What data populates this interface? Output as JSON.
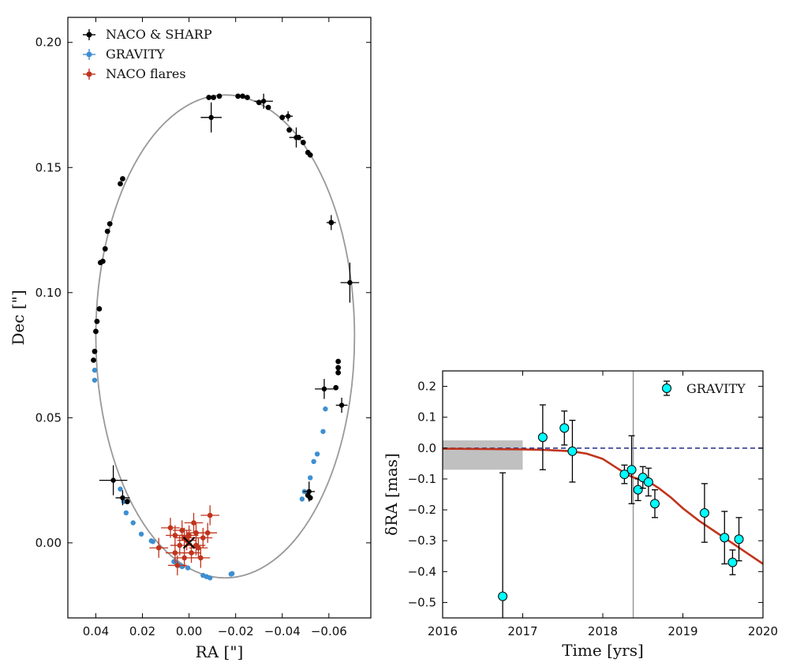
{
  "chart_data": [
    {
      "id": "orbit",
      "type": "scatter",
      "xlabel": "RA [\"]",
      "ylabel": "Dec [\"]",
      "xlim": [
        0.052,
        -0.078
      ],
      "ylim": [
        -0.03,
        0.21
      ],
      "x_ticks": [
        0.04,
        0.02,
        0.0,
        -0.02,
        -0.04,
        -0.06
      ],
      "x_tick_labels": [
        "0.04",
        "0.02",
        "0.00",
        "−0.02",
        "−0.04",
        "−0.06"
      ],
      "y_ticks": [
        0.0,
        0.05,
        0.1,
        0.15,
        0.2
      ],
      "y_tick_labels": [
        "0.00",
        "0.05",
        "0.10",
        "0.15",
        "0.20"
      ],
      "grid": false,
      "legend_position": "top-left",
      "legend": [
        {
          "label": "NACO & SHARP",
          "color": "#000000"
        },
        {
          "label": "GRAVITY",
          "color": "#3d8fd1"
        },
        {
          "label": "NACO flares",
          "color": "#c0341d"
        }
      ],
      "orbit_ellipse": {
        "center": [
          -0.0155,
          0.0825
        ],
        "semi_x": 0.0555,
        "semi_y": 0.0965,
        "color": "#999999"
      },
      "center_marker": {
        "x": 0.0,
        "y": 0.0,
        "symbol": "x"
      },
      "series": [
        {
          "name": "NACO & SHARP",
          "color": "#000000",
          "points": [
            [
              -0.0085,
              0.178
            ],
            [
              -0.0105,
              0.178
            ],
            [
              -0.013,
              0.1785
            ],
            [
              -0.021,
              0.1785
            ],
            [
              -0.023,
              0.1785
            ],
            [
              -0.025,
              0.178
            ],
            [
              -0.03,
              0.176
            ],
            [
              -0.034,
              0.174
            ],
            [
              -0.04,
              0.17
            ],
            [
              -0.043,
              0.165
            ],
            [
              -0.047,
              0.162
            ],
            [
              -0.049,
              0.16
            ],
            [
              -0.051,
              0.156
            ],
            [
              -0.052,
              0.155
            ],
            [
              -0.061,
              0.128
            ],
            [
              -0.064,
              0.0725
            ],
            [
              -0.064,
              0.07
            ],
            [
              -0.064,
              0.068
            ],
            [
              -0.063,
              0.062
            ],
            [
              -0.052,
              0.018
            ],
            [
              -0.051,
              0.019
            ],
            [
              0.0285,
              0.1455
            ],
            [
              0.0295,
              0.1435
            ],
            [
              0.034,
              0.1275
            ],
            [
              0.035,
              0.1245
            ],
            [
              0.036,
              0.1175
            ],
            [
              0.037,
              0.1125
            ],
            [
              0.038,
              0.112
            ],
            [
              0.0385,
              0.0935
            ],
            [
              0.0395,
              0.0885
            ],
            [
              0.04,
              0.0845
            ],
            [
              0.0405,
              0.0765
            ],
            [
              0.041,
              0.073
            ],
            [
              0.0265,
              0.0165
            ]
          ],
          "error_points": [
            {
              "x": -0.0095,
              "y": 0.17,
              "dx": 0.0045,
              "dy": 0.006
            },
            {
              "x": -0.032,
              "y": 0.1765,
              "dx": 0.004,
              "dy": 0.003
            },
            {
              "x": -0.046,
              "y": 0.162,
              "dx": 0.003,
              "dy": 0.004
            },
            {
              "x": -0.0425,
              "y": 0.1705,
              "dx": 0.002,
              "dy": 0.002
            },
            {
              "x": -0.061,
              "y": 0.128,
              "dx": 0.002,
              "dy": 0.003
            },
            {
              "x": -0.069,
              "y": 0.104,
              "dx": 0.004,
              "dy": 0.008
            },
            {
              "x": -0.058,
              "y": 0.0615,
              "dx": 0.004,
              "dy": 0.004
            },
            {
              "x": -0.0655,
              "y": 0.055,
              "dx": 0.0025,
              "dy": 0.003
            },
            {
              "x": -0.0515,
              "y": 0.0205,
              "dx": 0.0025,
              "dy": 0.004
            },
            {
              "x": 0.0325,
              "y": 0.025,
              "dx": 0.006,
              "dy": 0.006
            },
            {
              "x": 0.0285,
              "y": 0.018,
              "dx": 0.003,
              "dy": 0.003
            }
          ]
        },
        {
          "name": "GRAVITY",
          "color": "#3d8fd1",
          "points": [
            [
              0.0405,
              0.069
            ],
            [
              0.0405,
              0.065
            ],
            [
              0.0395,
              0.0885
            ],
            [
              0.0295,
              0.0215
            ],
            [
              0.028,
              0.0165
            ],
            [
              0.027,
              0.012
            ],
            [
              0.024,
              0.008
            ],
            [
              0.0205,
              0.0035
            ],
            [
              0.0162,
              0.0008
            ],
            [
              0.0155,
              0.0005
            ],
            [
              0.0065,
              -0.0075
            ],
            [
              0.0055,
              -0.008
            ],
            [
              0.004,
              -0.009
            ],
            [
              0.003,
              -0.0095
            ],
            [
              0.0005,
              -0.01
            ],
            [
              -0.006,
              -0.013
            ],
            [
              -0.0075,
              -0.0135
            ],
            [
              -0.009,
              -0.014
            ],
            [
              -0.018,
              -0.0125
            ],
            [
              -0.0185,
              -0.0123
            ],
            [
              -0.0485,
              0.0175
            ],
            [
              -0.0495,
              0.0205
            ],
            [
              -0.052,
              0.026
            ],
            [
              -0.0535,
              0.0325
            ],
            [
              -0.055,
              0.0355
            ],
            [
              -0.0575,
              0.0445
            ],
            [
              -0.0585,
              0.0535
            ]
          ]
        },
        {
          "name": "NACO flares",
          "color": "#c0341d",
          "points": [
            [
              0.001,
              0.001
            ],
            [
              -0.003,
              0.004
            ],
            [
              0.004,
              -0.001
            ],
            [
              -0.006,
              0.002
            ],
            [
              -0.001,
              -0.004
            ],
            [
              0.003,
              0.005
            ],
            [
              -0.004,
              -0.002
            ],
            [
              0.006,
              0.003
            ],
            [
              0.002,
              -0.006
            ],
            [
              -0.008,
              0.004
            ],
            [
              0.013,
              -0.002
            ],
            [
              -0.009,
              0.011
            ],
            [
              0.005,
              -0.009
            ],
            [
              -0.002,
              0.008
            ],
            [
              0.008,
              0.006
            ],
            [
              -0.005,
              -0.006
            ],
            [
              0.0,
              0.003
            ],
            [
              -0.003,
              -0.001
            ],
            [
              0.002,
              0.002
            ],
            [
              0.006,
              -0.004
            ]
          ]
        }
      ]
    },
    {
      "id": "delta-ra",
      "type": "scatter",
      "xlabel": "Time [yrs]",
      "ylabel": "δRA [mas]",
      "xlim": [
        2016,
        2020
      ],
      "ylim": [
        -0.55,
        0.25
      ],
      "x_ticks": [
        2016,
        2017,
        2018,
        2019,
        2020
      ],
      "x_tick_labels": [
        "2016",
        "2017",
        "2018",
        "2019",
        "2020"
      ],
      "y_ticks": [
        -0.5,
        -0.4,
        -0.3,
        -0.2,
        -0.1,
        0.0,
        0.1,
        0.2
      ],
      "y_tick_labels": [
        "−0.5",
        "−0.4",
        "−0.3",
        "−0.2",
        "−0.1",
        "0.0",
        "0.1",
        "0.2"
      ],
      "grid": false,
      "legend_position": "top-right",
      "legend": [
        {
          "label": "GRAVITY",
          "color": "#00ffff"
        }
      ],
      "zero_line": {
        "y": 0.0,
        "color": "#1f2a8c",
        "style": "dashed"
      },
      "shaded_band": {
        "x": [
          2016,
          2017
        ],
        "y": [
          -0.07,
          0.025
        ],
        "color": "#c0c0c0"
      },
      "vertical_line": {
        "x": 2018.38,
        "color": "#999999"
      },
      "model_curve": {
        "color": "#c0341d",
        "points": [
          [
            2016.0,
            -0.002
          ],
          [
            2016.5,
            -0.003
          ],
          [
            2017.0,
            -0.004
          ],
          [
            2017.3,
            -0.006
          ],
          [
            2017.6,
            -0.01
          ],
          [
            2017.8,
            -0.018
          ],
          [
            2018.0,
            -0.035
          ],
          [
            2018.15,
            -0.06
          ],
          [
            2018.3,
            -0.085
          ],
          [
            2018.38,
            -0.095
          ],
          [
            2018.45,
            -0.1
          ],
          [
            2018.55,
            -0.105
          ],
          [
            2018.7,
            -0.13
          ],
          [
            2018.85,
            -0.16
          ],
          [
            2019.0,
            -0.195
          ],
          [
            2019.2,
            -0.235
          ],
          [
            2019.4,
            -0.27
          ],
          [
            2019.6,
            -0.305
          ],
          [
            2019.8,
            -0.34
          ],
          [
            2020.0,
            -0.375
          ]
        ]
      },
      "series": [
        {
          "name": "GRAVITY",
          "color": "#00ffff",
          "points": [
            {
              "x": 2016.75,
              "y": -0.48,
              "err": 0.4
            },
            {
              "x": 2017.25,
              "y": 0.035,
              "err": 0.105
            },
            {
              "x": 2017.52,
              "y": 0.065,
              "err": 0.055
            },
            {
              "x": 2017.62,
              "y": -0.01,
              "err": 0.1
            },
            {
              "x": 2018.27,
              "y": -0.085,
              "err": 0.03
            },
            {
              "x": 2018.36,
              "y": -0.07,
              "err": 0.11
            },
            {
              "x": 2018.44,
              "y": -0.135,
              "err": 0.035
            },
            {
              "x": 2018.5,
              "y": -0.095,
              "err": 0.035
            },
            {
              "x": 2018.57,
              "y": -0.11,
              "err": 0.045
            },
            {
              "x": 2018.65,
              "y": -0.18,
              "err": 0.045
            },
            {
              "x": 2019.27,
              "y": -0.21,
              "err": 0.095
            },
            {
              "x": 2019.52,
              "y": -0.29,
              "err": 0.085
            },
            {
              "x": 2019.62,
              "y": -0.37,
              "err": 0.04
            },
            {
              "x": 2019.7,
              "y": -0.295,
              "err": 0.07
            }
          ]
        }
      ]
    }
  ]
}
